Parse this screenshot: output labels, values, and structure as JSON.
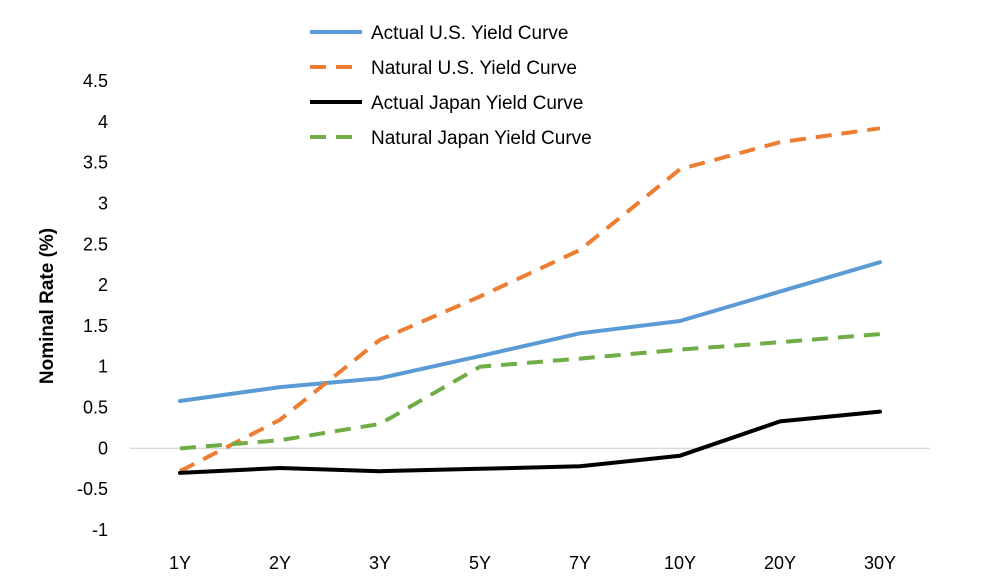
{
  "chart_data": {
    "type": "line",
    "ylabel": "Nominal Rate (%)",
    "ylim": [
      -1,
      4.5
    ],
    "yticks": [
      "4.5",
      "4",
      "3.5",
      "3",
      "2.5",
      "2",
      "1.5",
      "1",
      "0.5",
      "0",
      "-0.5",
      "-1"
    ],
    "categories": [
      "1Y",
      "2Y",
      "3Y",
      "5Y",
      "7Y",
      "10Y",
      "20Y",
      "30Y"
    ],
    "legend_position": "top",
    "grid": false,
    "series": [
      {
        "name": "Actual U.S. Yield Curve",
        "color": "#5b9bd5",
        "dash": "solid",
        "values": [
          0.58,
          0.75,
          0.86,
          1.13,
          1.41,
          1.56,
          1.92,
          2.28
        ]
      },
      {
        "name": "Natural U.S. Yield Curve",
        "color": "#ed7d31",
        "dash": "dashed",
        "values": [
          -0.28,
          0.35,
          1.33,
          1.86,
          2.43,
          3.42,
          3.75,
          3.92
        ]
      },
      {
        "name": "Actual Japan Yield Curve",
        "color": "#000000",
        "dash": "solid",
        "values": [
          -0.3,
          -0.24,
          -0.28,
          -0.25,
          -0.22,
          -0.09,
          0.33,
          0.45
        ]
      },
      {
        "name": "Natural Japan Yield Curve",
        "color": "#70ad47",
        "dash": "dashed",
        "values": [
          0.0,
          0.1,
          0.3,
          1.0,
          1.1,
          1.21,
          1.3,
          1.4
        ]
      }
    ]
  }
}
